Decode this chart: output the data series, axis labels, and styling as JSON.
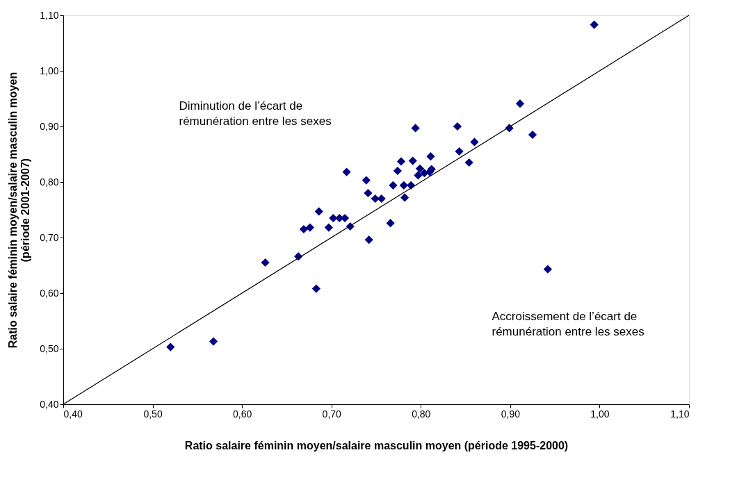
{
  "chart_data": {
    "type": "scatter",
    "xlabel": "Ratio salaire féminin moyen/salaire masculin moyen (période 1995-2000)",
    "ylabel": "Ratio salaire féminin moyen/salaire masculin moyen\n(période 2001-2007)",
    "xlim": [
      0.4,
      1.1
    ],
    "ylim": [
      0.4,
      1.1
    ],
    "xticks": [
      {
        "value": 0.4,
        "label": "0,40"
      },
      {
        "value": 0.5,
        "label": "0,50"
      },
      {
        "value": 0.6,
        "label": "0,60"
      },
      {
        "value": 0.7,
        "label": "0,70"
      },
      {
        "value": 0.8,
        "label": "0,80"
      },
      {
        "value": 0.9,
        "label": "0,90"
      },
      {
        "value": 1.0,
        "label": "1,00"
      },
      {
        "value": 1.1,
        "label": "1,10"
      }
    ],
    "yticks": [
      {
        "value": 0.4,
        "label": "0,40"
      },
      {
        "value": 0.5,
        "label": "0,50"
      },
      {
        "value": 0.6,
        "label": "0,60"
      },
      {
        "value": 0.7,
        "label": "0,70"
      },
      {
        "value": 0.8,
        "label": "0,80"
      },
      {
        "value": 0.9,
        "label": "0,90"
      },
      {
        "value": 1.0,
        "label": "1,00"
      },
      {
        "value": 1.1,
        "label": "1,10"
      }
    ],
    "grid": false,
    "marker": "diamond",
    "annotations": [
      "Diminution de l’écart de\nrémunération entre les sexes",
      "Accroissement  de l’écart de\nrémunération entre les sexes"
    ],
    "series": [
      {
        "color": "#000080",
        "x": [
          0.52,
          0.568,
          0.626,
          0.663,
          0.683,
          0.686,
          0.669,
          0.676,
          0.702,
          0.697,
          0.709,
          0.715,
          0.721,
          0.717,
          0.739,
          0.741,
          0.749,
          0.756,
          0.742,
          0.766,
          0.769,
          0.774,
          0.778,
          0.781,
          0.789,
          0.782,
          0.791,
          0.794,
          0.797,
          0.799,
          0.804,
          0.81,
          0.811,
          0.812,
          0.841,
          0.843,
          0.854,
          0.86,
          0.899,
          0.911,
          0.925,
          0.942,
          0.994
        ],
        "values": [
          0.503,
          0.513,
          0.655,
          0.666,
          0.608,
          0.747,
          0.715,
          0.718,
          0.735,
          0.718,
          0.735,
          0.735,
          0.72,
          0.818,
          0.803,
          0.78,
          0.77,
          0.77,
          0.696,
          0.726,
          0.794,
          0.82,
          0.837,
          0.794,
          0.794,
          0.772,
          0.838,
          0.897,
          0.812,
          0.824,
          0.816,
          0.818,
          0.846,
          0.823,
          0.9,
          0.855,
          0.835,
          0.872,
          0.897,
          0.941,
          0.885,
          0.643,
          1.083
        ]
      },
      {
        "type": "line",
        "marker": "none",
        "line_style": "solid",
        "color": "#000000",
        "x": [
          0.4,
          1.1
        ],
        "values": [
          0.4,
          1.1
        ]
      }
    ]
  }
}
